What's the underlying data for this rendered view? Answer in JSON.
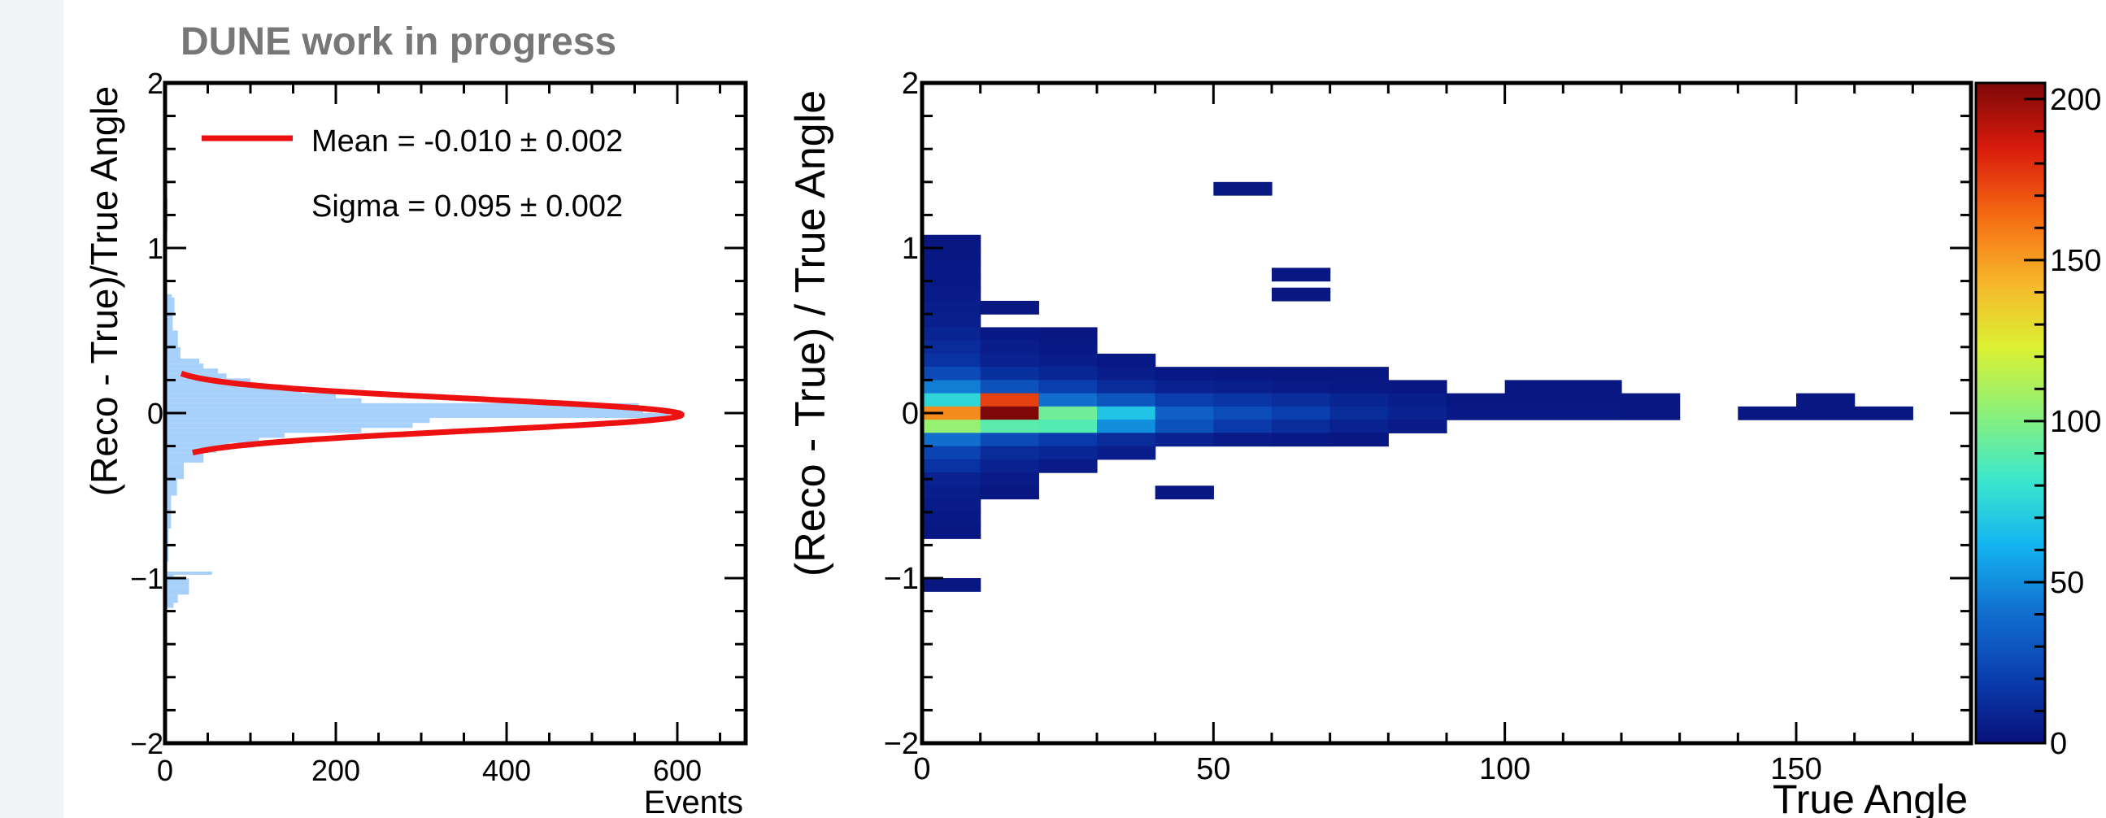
{
  "banner": "DUNE work in progress",
  "chart_data": [
    {
      "type": "bar",
      "orientation": "horizontal",
      "xlabel": "Events",
      "ylabel": "(Reco - True)/True Angle",
      "xlim": [
        0,
        680
      ],
      "ylim": [
        -2,
        2
      ],
      "x_ticks": [
        "0",
        "200",
        "400",
        "600"
      ],
      "y_ticks": [
        "−2",
        "−1",
        "0",
        "1",
        "2"
      ],
      "bar_color": "#a7d1fb",
      "bins": [
        {
          "y0": 1.1,
          "y1": 1.3,
          "count": 3
        },
        {
          "y0": 0.9,
          "y1": 1.1,
          "count": 2
        },
        {
          "y0": 0.7,
          "y1": 0.72,
          "count": 8
        },
        {
          "y0": 0.6,
          "y1": 0.7,
          "count": 11
        },
        {
          "y0": 0.5,
          "y1": 0.6,
          "count": 9
        },
        {
          "y0": 0.4,
          "y1": 0.5,
          "count": 15
        },
        {
          "y0": 0.33,
          "y1": 0.4,
          "count": 18
        },
        {
          "y0": 0.3,
          "y1": 0.33,
          "count": 40
        },
        {
          "y0": 0.27,
          "y1": 0.3,
          "count": 45
        },
        {
          "y0": 0.24,
          "y1": 0.27,
          "count": 62
        },
        {
          "y0": 0.21,
          "y1": 0.24,
          "count": 72
        },
        {
          "y0": 0.18,
          "y1": 0.21,
          "count": 100
        },
        {
          "y0": 0.15,
          "y1": 0.18,
          "count": 120
        },
        {
          "y0": 0.12,
          "y1": 0.15,
          "count": 160
        },
        {
          "y0": 0.09,
          "y1": 0.12,
          "count": 200
        },
        {
          "y0": 0.06,
          "y1": 0.09,
          "count": 230
        },
        {
          "y0": 0.03,
          "y1": 0.06,
          "count": 555
        },
        {
          "y0": 0.0,
          "y1": 0.03,
          "count": 560
        },
        {
          "y0": -0.03,
          "y1": 0.0,
          "count": 590
        },
        {
          "y0": -0.06,
          "y1": -0.03,
          "count": 310
        },
        {
          "y0": -0.09,
          "y1": -0.06,
          "count": 290
        },
        {
          "y0": -0.12,
          "y1": -0.09,
          "count": 230
        },
        {
          "y0": -0.15,
          "y1": -0.12,
          "count": 140
        },
        {
          "y0": -0.18,
          "y1": -0.15,
          "count": 110
        },
        {
          "y0": -0.21,
          "y1": -0.18,
          "count": 75
        },
        {
          "y0": -0.24,
          "y1": -0.21,
          "count": 60
        },
        {
          "y0": -0.3,
          "y1": -0.24,
          "count": 45
        },
        {
          "y0": -0.4,
          "y1": -0.3,
          "count": 22
        },
        {
          "y0": -0.5,
          "y1": -0.4,
          "count": 14
        },
        {
          "y0": -0.7,
          "y1": -0.5,
          "count": 7
        },
        {
          "y0": -0.9,
          "y1": -0.7,
          "count": 4
        },
        {
          "y0": -1.0,
          "y1": -0.98,
          "count": 10
        },
        {
          "y0": -0.98,
          "y1": -0.96,
          "count": 55
        },
        {
          "y0": -1.05,
          "y1": -1.0,
          "count": 28
        },
        {
          "y0": -1.1,
          "y1": -1.05,
          "count": 28
        },
        {
          "y0": -1.15,
          "y1": -1.1,
          "count": 15
        },
        {
          "y0": -1.18,
          "y1": -1.15,
          "count": 10
        }
      ],
      "fit": {
        "function": "gaussian",
        "amplitude": 605,
        "mean": -0.01,
        "sigma": 0.095,
        "y_range": [
          -0.24,
          0.24
        ],
        "color": "#ee1111",
        "legend_lines": [
          "Mean = -0.010 ± 0.002",
          "Sigma = 0.095 ± 0.002"
        ]
      }
    },
    {
      "type": "heatmap",
      "xlabel": "True Angle",
      "ylabel": "(Reco - True) / True Angle",
      "xlim": [
        0,
        180
      ],
      "ylim": [
        -2,
        2
      ],
      "x_ticks": [
        "0",
        "50",
        "100",
        "150"
      ],
      "y_ticks": [
        "−2",
        "−1",
        "0",
        "1",
        "2"
      ],
      "x_bin_width": 10,
      "y_bin_width": 0.08,
      "zlim": [
        0,
        205
      ],
      "z_ticks": [
        "0",
        "50",
        "100",
        "150",
        "200"
      ],
      "colorscale": [
        "#08107a",
        "#0a3fb0",
        "#1170cf",
        "#14b4f0",
        "#3ce8cc",
        "#8cf07a",
        "#dcf032",
        "#f7b52a",
        "#f56a12",
        "#d81c0c",
        "#7e0808"
      ],
      "cells": [
        {
          "x": 0,
          "y": 1.04,
          "z": 3
        },
        {
          "x": 0,
          "y": 0.96,
          "z": 3
        },
        {
          "x": 0,
          "y": 0.88,
          "z": 4
        },
        {
          "x": 0,
          "y": 0.8,
          "z": 4
        },
        {
          "x": 0,
          "y": 0.72,
          "z": 5
        },
        {
          "x": 0,
          "y": 0.64,
          "z": 6
        },
        {
          "x": 0,
          "y": 0.56,
          "z": 7
        },
        {
          "x": 0,
          "y": 0.48,
          "z": 9
        },
        {
          "x": 0,
          "y": 0.4,
          "z": 12
        },
        {
          "x": 0,
          "y": 0.32,
          "z": 15
        },
        {
          "x": 0,
          "y": 0.24,
          "z": 25
        },
        {
          "x": 0,
          "y": 0.16,
          "z": 45
        },
        {
          "x": 0,
          "y": 0.08,
          "z": 75
        },
        {
          "x": 0,
          "y": 0.0,
          "z": 155
        },
        {
          "x": 0,
          "y": -0.08,
          "z": 105
        },
        {
          "x": 0,
          "y": -0.16,
          "z": 40
        },
        {
          "x": 0,
          "y": -0.24,
          "z": 22
        },
        {
          "x": 0,
          "y": -0.32,
          "z": 15
        },
        {
          "x": 0,
          "y": -0.4,
          "z": 8
        },
        {
          "x": 0,
          "y": -0.48,
          "z": 6
        },
        {
          "x": 0,
          "y": -0.56,
          "z": 5
        },
        {
          "x": 0,
          "y": -0.64,
          "z": 4
        },
        {
          "x": 0,
          "y": -0.72,
          "z": 3
        },
        {
          "x": 0,
          "y": -1.04,
          "z": 3
        },
        {
          "x": 10,
          "y": 0.64,
          "z": 3
        },
        {
          "x": 10,
          "y": 0.48,
          "z": 4
        },
        {
          "x": 10,
          "y": 0.4,
          "z": 6
        },
        {
          "x": 10,
          "y": 0.32,
          "z": 8
        },
        {
          "x": 10,
          "y": 0.24,
          "z": 14
        },
        {
          "x": 10,
          "y": 0.16,
          "z": 28
        },
        {
          "x": 10,
          "y": 0.08,
          "z": 175
        },
        {
          "x": 10,
          "y": 0.0,
          "z": 205
        },
        {
          "x": 10,
          "y": -0.08,
          "z": 90
        },
        {
          "x": 10,
          "y": -0.16,
          "z": 25
        },
        {
          "x": 10,
          "y": -0.24,
          "z": 12
        },
        {
          "x": 10,
          "y": -0.32,
          "z": 8
        },
        {
          "x": 10,
          "y": -0.4,
          "z": 5
        },
        {
          "x": 10,
          "y": -0.48,
          "z": 3
        },
        {
          "x": 20,
          "y": 0.48,
          "z": 3
        },
        {
          "x": 20,
          "y": 0.4,
          "z": 4
        },
        {
          "x": 20,
          "y": 0.32,
          "z": 6
        },
        {
          "x": 20,
          "y": 0.24,
          "z": 10
        },
        {
          "x": 20,
          "y": 0.16,
          "z": 20
        },
        {
          "x": 20,
          "y": 0.08,
          "z": 40
        },
        {
          "x": 20,
          "y": 0.0,
          "z": 95
        },
        {
          "x": 20,
          "y": -0.08,
          "z": 88
        },
        {
          "x": 20,
          "y": -0.16,
          "z": 18
        },
        {
          "x": 20,
          "y": -0.24,
          "z": 10
        },
        {
          "x": 20,
          "y": -0.32,
          "z": 5
        },
        {
          "x": 30,
          "y": 0.32,
          "z": 4
        },
        {
          "x": 30,
          "y": 0.24,
          "z": 6
        },
        {
          "x": 30,
          "y": 0.16,
          "z": 12
        },
        {
          "x": 30,
          "y": 0.08,
          "z": 30
        },
        {
          "x": 30,
          "y": 0.0,
          "z": 68
        },
        {
          "x": 30,
          "y": -0.08,
          "z": 50
        },
        {
          "x": 30,
          "y": -0.16,
          "z": 12
        },
        {
          "x": 30,
          "y": -0.24,
          "z": 6
        },
        {
          "x": 40,
          "y": 0.24,
          "z": 4
        },
        {
          "x": 40,
          "y": 0.16,
          "z": 8
        },
        {
          "x": 40,
          "y": 0.08,
          "z": 20
        },
        {
          "x": 40,
          "y": 0.0,
          "z": 34
        },
        {
          "x": 40,
          "y": -0.08,
          "z": 28
        },
        {
          "x": 40,
          "y": -0.16,
          "z": 8
        },
        {
          "x": 40,
          "y": -0.48,
          "z": 3
        },
        {
          "x": 50,
          "y": 1.36,
          "z": 3
        },
        {
          "x": 50,
          "y": 0.24,
          "z": 3
        },
        {
          "x": 50,
          "y": 0.16,
          "z": 7
        },
        {
          "x": 50,
          "y": 0.08,
          "z": 16
        },
        {
          "x": 50,
          "y": 0.0,
          "z": 26
        },
        {
          "x": 50,
          "y": -0.08,
          "z": 18
        },
        {
          "x": 50,
          "y": -0.16,
          "z": 5
        },
        {
          "x": 60,
          "y": 0.84,
          "z": 3
        },
        {
          "x": 60,
          "y": 0.72,
          "z": 3
        },
        {
          "x": 60,
          "y": 0.24,
          "z": 3
        },
        {
          "x": 60,
          "y": 0.16,
          "z": 5
        },
        {
          "x": 60,
          "y": 0.08,
          "z": 13
        },
        {
          "x": 60,
          "y": 0.0,
          "z": 20
        },
        {
          "x": 60,
          "y": -0.08,
          "z": 12
        },
        {
          "x": 60,
          "y": -0.16,
          "z": 4
        },
        {
          "x": 70,
          "y": 0.24,
          "z": 3
        },
        {
          "x": 70,
          "y": 0.16,
          "z": 4
        },
        {
          "x": 70,
          "y": 0.08,
          "z": 9
        },
        {
          "x": 70,
          "y": 0.0,
          "z": 13
        },
        {
          "x": 70,
          "y": -0.08,
          "z": 8
        },
        {
          "x": 70,
          "y": -0.16,
          "z": 3
        },
        {
          "x": 80,
          "y": 0.16,
          "z": 3
        },
        {
          "x": 80,
          "y": 0.08,
          "z": 6
        },
        {
          "x": 80,
          "y": 0.0,
          "z": 8
        },
        {
          "x": 80,
          "y": -0.08,
          "z": 5
        },
        {
          "x": 90,
          "y": 0.08,
          "z": 3
        },
        {
          "x": 90,
          "y": 0.0,
          "z": 4
        },
        {
          "x": 100,
          "y": 0.16,
          "z": 3
        },
        {
          "x": 100,
          "y": 0.08,
          "z": 3
        },
        {
          "x": 100,
          "y": 0.0,
          "z": 4
        },
        {
          "x": 110,
          "y": 0.16,
          "z": 3
        },
        {
          "x": 110,
          "y": 0.08,
          "z": 3
        },
        {
          "x": 110,
          "y": 0.0,
          "z": 4
        },
        {
          "x": 120,
          "y": 0.08,
          "z": 3
        },
        {
          "x": 120,
          "y": 0.0,
          "z": 3
        },
        {
          "x": 140,
          "y": 0.0,
          "z": 3
        },
        {
          "x": 150,
          "y": 0.08,
          "z": 3
        },
        {
          "x": 150,
          "y": 0.0,
          "z": 3
        },
        {
          "x": 160,
          "y": 0.0,
          "z": 3
        }
      ]
    }
  ]
}
